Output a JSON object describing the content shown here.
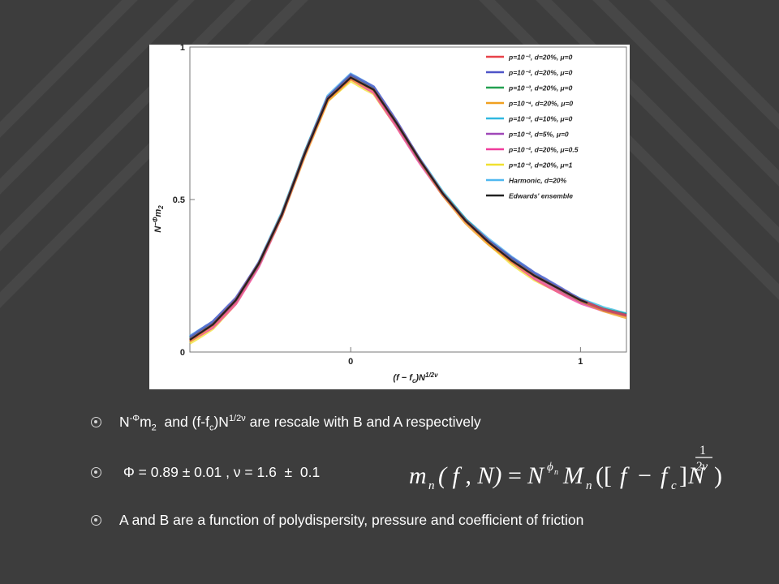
{
  "chart_data": {
    "type": "line",
    "xlabel": "(f − f",
    "xlabel_sub": "c",
    "xlabel_tail": ")N",
    "xlabel_sup": "1/2ν",
    "ylabel": "N",
    "ylabel_sup": "−Φ",
    "ylabel_tail": "m",
    "ylabel_sub": "2",
    "xlim": [
      -0.7,
      1.2
    ],
    "ylim": [
      0,
      1.0
    ],
    "xticks": [
      "0",
      "1"
    ],
    "xtick_values": [
      0,
      1
    ],
    "yticks": [
      "0",
      "0.5",
      "1"
    ],
    "ytick_values": [
      0,
      0.5,
      1
    ],
    "legend_position": "top-right",
    "grid": false,
    "series": [
      {
        "name": "p=10⁻¹, d=20%, μ=0",
        "color": "#e8424a",
        "offset": 0.0,
        "xmax": 1.2
      },
      {
        "name": "p=10⁻², d=20%, μ=0",
        "color": "#4f55c8",
        "offset": 0.01,
        "xmax": 1.2
      },
      {
        "name": "p=10⁻³, d=20%, μ=0",
        "color": "#22a050",
        "offset": 0.005,
        "xmax": 1.2
      },
      {
        "name": "p=10⁻⁴, d=20%, μ=0",
        "color": "#f0a020",
        "offset": -0.008,
        "xmax": 1.2
      },
      {
        "name": "p=10⁻², d=10%, μ=0",
        "color": "#30b8e0",
        "offset": 0.006,
        "xmax": 1.2
      },
      {
        "name": "p=10⁻², d=5%, μ=0",
        "color": "#a048b8",
        "offset": -0.004,
        "xmax": 1.2
      },
      {
        "name": "p=10⁻², d=20%, μ=0.5",
        "color": "#f03c9c",
        "offset": -0.012,
        "xmax": 1.2
      },
      {
        "name": "p=10⁻², d=20%, μ=1",
        "color": "#f0e030",
        "offset": -0.014,
        "xmax": 1.2
      },
      {
        "name": "Harmonic,  d=20%",
        "color": "#50b8f0",
        "offset": 0.012,
        "xmax": 1.2
      },
      {
        "name": "Edwards' ensemble",
        "color": "#222222",
        "offset": 0.0,
        "xmax": 1.03
      }
    ],
    "curve_sample": {
      "x": [
        -0.7,
        -0.6,
        -0.5,
        -0.4,
        -0.3,
        -0.2,
        -0.1,
        0.0,
        0.1,
        0.2,
        0.3,
        0.4,
        0.5,
        0.6,
        0.7,
        0.8,
        0.9,
        1.0,
        1.1,
        1.2
      ],
      "y": [
        0.04,
        0.09,
        0.17,
        0.29,
        0.45,
        0.65,
        0.83,
        0.9,
        0.86,
        0.75,
        0.63,
        0.52,
        0.43,
        0.36,
        0.3,
        0.25,
        0.21,
        0.17,
        0.14,
        0.12
      ]
    }
  },
  "bullets": [
    {
      "n": "N",
      "n_sup": "-Φ",
      "m": "m",
      "m_sub": "2",
      "and1": "  and (f-f",
      "c_sub": "c",
      "n2": ")N",
      "n2_sup": "1/2ν",
      "rest": " are rescale with B and A respectively"
    },
    {
      "text": " Φ = 0.89 ± 0.01 , ν = 1.6  ±  0.1"
    },
    {
      "text": "A and B are a function of polydispersity, pressure and coefficient of friction"
    }
  ],
  "formula": {
    "m": "m",
    "n_sub": "n",
    "args": "( f , N)",
    "eq": "=",
    "N": "N",
    "phi_sup": "ϕ",
    "phi_sub": "n",
    "M": "M",
    "M_sub": "n",
    "open": "([",
    "f": "f",
    "minus": "−",
    "fc": "f",
    "fc_sub": "c",
    "close_bracket": "]",
    "N2": "N",
    "exp_num": "1",
    "exp_den": "2ν",
    "close": ")"
  }
}
